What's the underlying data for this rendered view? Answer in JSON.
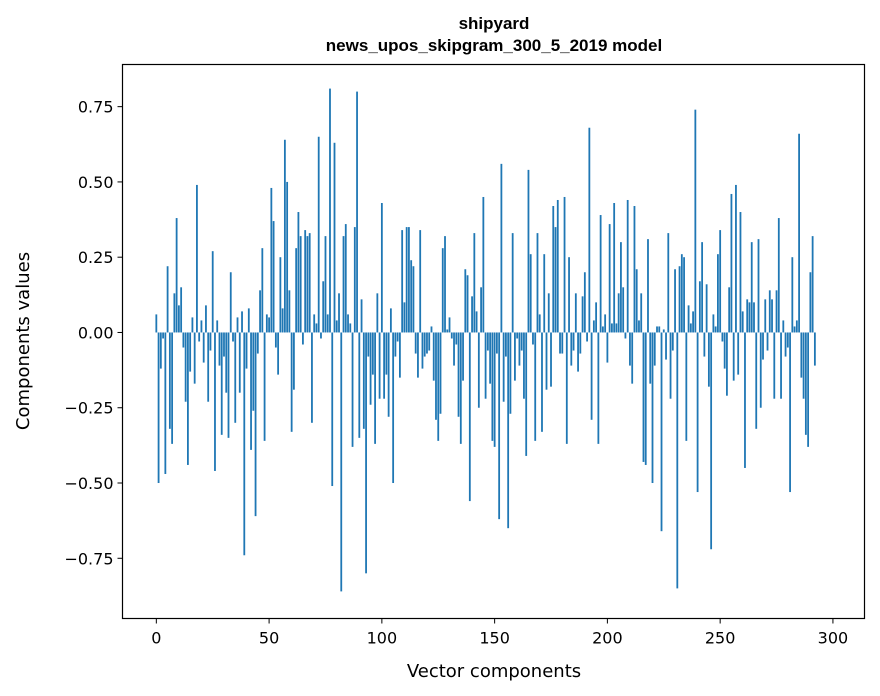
{
  "chart_data": {
    "type": "bar",
    "title": "shipyard",
    "subtitle": "news_upos_skipgram_300_5_2019 model",
    "xlabel": "Vector components",
    "ylabel": "Components values",
    "xlim": [
      -15,
      314
    ],
    "ylim": [
      -0.95,
      0.89
    ],
    "xticks": [
      0,
      50,
      100,
      150,
      200,
      250,
      300
    ],
    "xtick_labels": [
      "0",
      "50",
      "100",
      "150",
      "200",
      "250",
      "300"
    ],
    "yticks": [
      -0.75,
      -0.5,
      -0.25,
      0.0,
      0.25,
      0.5,
      0.75
    ],
    "ytick_labels": [
      "−0.75",
      "−0.50",
      "−0.25",
      "0.00",
      "0.25",
      "0.50",
      "0.75"
    ],
    "bar_color": "#1f77b4",
    "grid": false,
    "series": [
      {
        "name": "shipyard",
        "values": [
          0.06,
          -0.5,
          -0.12,
          -0.02,
          -0.47,
          0.22,
          -0.32,
          -0.37,
          0.13,
          0.38,
          0.09,
          0.15,
          -0.05,
          -0.23,
          -0.44,
          -0.13,
          0.05,
          -0.17,
          0.49,
          -0.03,
          0.04,
          -0.1,
          0.09,
          -0.23,
          -0.06,
          0.27,
          -0.46,
          0.04,
          -0.11,
          -0.34,
          -0.08,
          -0.2,
          -0.35,
          0.2,
          -0.03,
          -0.3,
          0.05,
          -0.2,
          0.07,
          -0.74,
          -0.12,
          0.08,
          -0.39,
          -0.26,
          -0.61,
          -0.07,
          0.14,
          0.28,
          -0.36,
          0.06,
          0.05,
          0.48,
          0.37,
          -0.05,
          -0.14,
          0.25,
          0.08,
          0.64,
          0.5,
          0.14,
          -0.33,
          -0.19,
          0.28,
          0.4,
          0.32,
          -0.04,
          0.34,
          0.32,
          0.33,
          -0.3,
          0.06,
          0.03,
          0.65,
          -0.02,
          0.17,
          0.32,
          0.06,
          0.81,
          -0.51,
          0.63,
          0.04,
          0.13,
          -0.86,
          0.32,
          0.36,
          0.06,
          0.03,
          -0.38,
          0.35,
          0.8,
          -0.35,
          0.11,
          -0.32,
          -0.8,
          -0.08,
          -0.24,
          -0.14,
          -0.37,
          0.13,
          -0.22,
          0.43,
          -0.22,
          -0.14,
          -0.28,
          0.08,
          -0.5,
          -0.08,
          -0.03,
          -0.15,
          0.34,
          0.1,
          0.35,
          0.35,
          0.24,
          0.22,
          -0.07,
          -0.15,
          0.34,
          -0.12,
          -0.08,
          -0.07,
          -0.06,
          0.02,
          -0.16,
          -0.29,
          -0.36,
          -0.27,
          0.28,
          0.32,
          0.01,
          0.05,
          -0.02,
          -0.11,
          -0.04,
          -0.28,
          -0.37,
          -0.16,
          0.21,
          0.19,
          -0.56,
          0.12,
          0.33,
          0.07,
          -0.25,
          0.15,
          0.45,
          -0.22,
          -0.06,
          -0.17,
          -0.36,
          -0.38,
          -0.07,
          -0.62,
          0.56,
          -0.23,
          -0.08,
          -0.65,
          -0.27,
          0.33,
          -0.16,
          -0.02,
          -0.11,
          -0.06,
          -0.22,
          -0.41,
          0.54,
          0.26,
          -0.04,
          -0.36,
          0.33,
          0.06,
          -0.33,
          0.26,
          -0.19,
          0.13,
          -0.18,
          0.42,
          0.35,
          0.44,
          -0.07,
          -0.07,
          0.45,
          -0.37,
          0.25,
          -0.11,
          -0.06,
          0.13,
          -0.13,
          -0.07,
          0.12,
          0.2,
          -0.03,
          0.68,
          -0.29,
          0.04,
          0.1,
          -0.37,
          0.39,
          0.02,
          0.06,
          -0.1,
          0.36,
          0.03,
          0.43,
          0.03,
          0.13,
          0.3,
          0.15,
          -0.02,
          0.44,
          -0.11,
          -0.17,
          0.42,
          0.21,
          0.04,
          0.13,
          -0.43,
          -0.44,
          0.31,
          -0.17,
          -0.5,
          -0.11,
          0.02,
          0.02,
          -0.66,
          0.01,
          -0.09,
          0.33,
          -0.22,
          -0.06,
          0.21,
          -0.85,
          0.22,
          0.26,
          0.25,
          -0.36,
          0.09,
          0.03,
          0.07,
          0.74,
          -0.53,
          0.17,
          0.3,
          -0.08,
          0.16,
          -0.18,
          -0.72,
          0.06,
          0.02,
          0.26,
          0.34,
          -0.03,
          -0.12,
          -0.21,
          0.15,
          0.46,
          -0.16,
          0.49,
          -0.14,
          0.4,
          0.07,
          -0.45,
          0.11,
          0.1,
          0.3,
          0.1,
          -0.32,
          0.31,
          -0.25,
          -0.09,
          0.11,
          -0.06,
          0.14,
          0.11,
          -0.22,
          0.14,
          0.38,
          -0.22,
          0.04,
          -0.08,
          -0.05,
          -0.53,
          0.25,
          0.02,
          0.04,
          0.66,
          -0.15,
          -0.22,
          -0.34,
          -0.38,
          0.2,
          0.32,
          -0.11
        ]
      }
    ]
  }
}
